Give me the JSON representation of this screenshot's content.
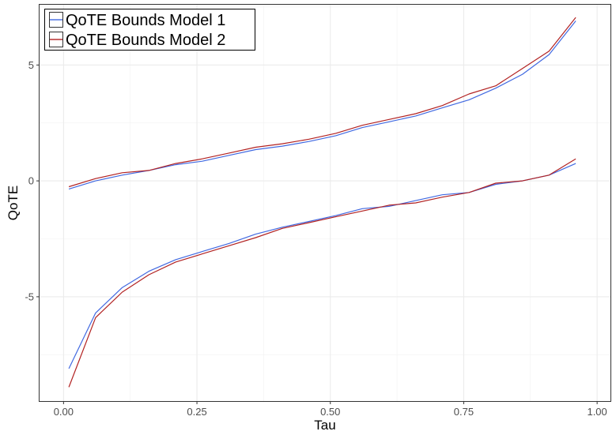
{
  "chart_data": {
    "type": "line",
    "xlabel": "Tau",
    "ylabel": "QoTE",
    "xlim": [
      -0.045,
      1.025
    ],
    "ylim": [
      -9.5,
      7.6
    ],
    "x_ticks": [
      0.0,
      0.25,
      0.5,
      0.75,
      1.0
    ],
    "x_tick_labels": [
      "0.00",
      "0.25",
      "0.50",
      "0.75",
      "1.00"
    ],
    "y_ticks": [
      -5,
      0,
      5
    ],
    "y_tick_labels": [
      "-5",
      "0",
      "5"
    ],
    "grid": true,
    "legend_position": "top-left",
    "x": [
      0.01,
      0.06,
      0.11,
      0.16,
      0.21,
      0.26,
      0.31,
      0.36,
      0.41,
      0.46,
      0.51,
      0.56,
      0.61,
      0.66,
      0.71,
      0.76,
      0.81,
      0.86,
      0.91,
      0.96
    ],
    "series": [
      {
        "name": "QoTE Bounds Model 1",
        "color": "#4169e1",
        "upper": [
          -0.35,
          0.0,
          0.25,
          0.45,
          0.7,
          0.85,
          1.1,
          1.35,
          1.5,
          1.7,
          1.95,
          2.3,
          2.55,
          2.8,
          3.15,
          3.5,
          4.0,
          4.6,
          5.45,
          6.9
        ],
        "lower": [
          -8.1,
          -5.7,
          -4.6,
          -3.9,
          -3.4,
          -3.05,
          -2.7,
          -2.3,
          -2.0,
          -1.75,
          -1.5,
          -1.2,
          -1.1,
          -0.85,
          -0.6,
          -0.5,
          -0.15,
          0.0,
          0.25,
          0.75
        ]
      },
      {
        "name": "QoTE Bounds Model 2",
        "color": "#b22222",
        "upper": [
          -0.25,
          0.1,
          0.35,
          0.45,
          0.75,
          0.95,
          1.2,
          1.45,
          1.6,
          1.8,
          2.05,
          2.4,
          2.65,
          2.9,
          3.25,
          3.75,
          4.1,
          4.85,
          5.6,
          7.05
        ],
        "lower": [
          -8.9,
          -5.9,
          -4.8,
          -4.05,
          -3.5,
          -3.15,
          -2.8,
          -2.45,
          -2.05,
          -1.8,
          -1.55,
          -1.3,
          -1.05,
          -0.95,
          -0.7,
          -0.5,
          -0.1,
          0.0,
          0.25,
          0.95
        ]
      }
    ]
  }
}
